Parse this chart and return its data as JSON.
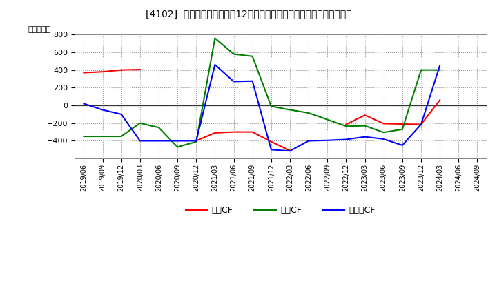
{
  "title": "[4102]  キャッシュフローの12か月移動合計の対前年同期増減額の推移",
  "ylabel": "（百万円）",
  "background_color": "#ffffff",
  "grid_color": "#999999",
  "x_labels": [
    "2019/06",
    "2019/09",
    "2019/12",
    "2020/03",
    "2020/06",
    "2020/09",
    "2020/12",
    "2021/03",
    "2021/06",
    "2021/09",
    "2021/12",
    "2022/03",
    "2022/06",
    "2022/09",
    "2022/12",
    "2023/03",
    "2023/06",
    "2023/09",
    "2023/12",
    "2024/03",
    "2024/06",
    "2024/09"
  ],
  "eigyo_cf": [
    370,
    380,
    400,
    405,
    null,
    null,
    -400,
    -310,
    -300,
    -300,
    -410,
    -510,
    null,
    null,
    -215,
    -110,
    -205,
    -210,
    -215,
    60,
    null,
    null
  ],
  "toshi_cf": [
    -350,
    -350,
    -350,
    -200,
    -250,
    -470,
    -410,
    760,
    580,
    555,
    -10,
    -50,
    -85,
    -160,
    -235,
    -230,
    -305,
    -270,
    400,
    400,
    null,
    null
  ],
  "free_cf": [
    20,
    -50,
    -100,
    -400,
    -400,
    -400,
    -400,
    460,
    270,
    275,
    -500,
    -515,
    -400,
    -395,
    -385,
    -355,
    -380,
    -450,
    -215,
    450,
    null,
    null
  ],
  "ylim": [
    -600,
    800
  ],
  "yticks": [
    -400,
    -200,
    0,
    200,
    400,
    600,
    800
  ],
  "line_colors": {
    "eigyo": "#ff0000",
    "toshi": "#008000",
    "free": "#0000ff"
  },
  "legend_labels": [
    "営業CF",
    "投資CF",
    "フリーCF"
  ]
}
